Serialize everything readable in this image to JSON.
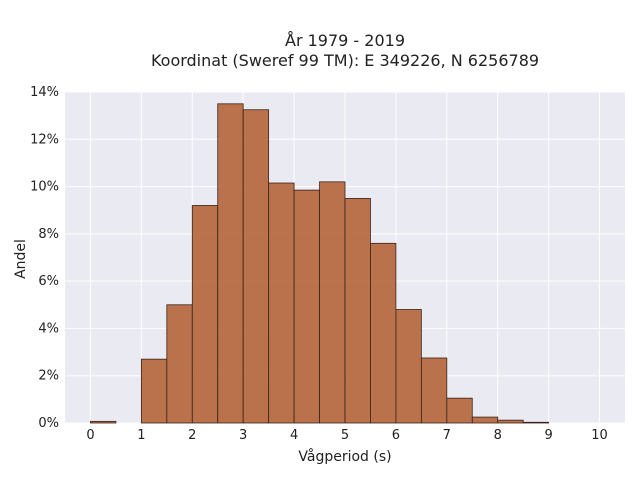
{
  "chart_data": {
    "type": "bar",
    "title_lines": [
      "År 1979 - 2019",
      "Koordinat (Sweref 99 TM): E 349226, N 6256789"
    ],
    "xlabel": "Vågperiod (s)",
    "ylabel": "Andel",
    "xlim": [
      -0.5,
      10.5
    ],
    "ylim": [
      0,
      14
    ],
    "x_ticks": [
      0,
      1,
      2,
      3,
      4,
      5,
      6,
      7,
      8,
      9,
      10
    ],
    "y_ticks": [
      0,
      2,
      4,
      6,
      8,
      10,
      12,
      14
    ],
    "y_tick_format": "percent",
    "bin_width": 0.5,
    "grid": true,
    "bar_color": "#b5653a",
    "bar_edge_color": "#3a2418",
    "plot_background": "#eaeaf2",
    "bins": [
      {
        "x0": 0.0,
        "value": 0.07
      },
      {
        "x0": 0.5,
        "value": 0.0
      },
      {
        "x0": 1.0,
        "value": 2.7
      },
      {
        "x0": 1.5,
        "value": 5.0
      },
      {
        "x0": 2.0,
        "value": 9.2
      },
      {
        "x0": 2.5,
        "value": 13.5
      },
      {
        "x0": 3.0,
        "value": 13.25
      },
      {
        "x0": 3.5,
        "value": 10.15
      },
      {
        "x0": 4.0,
        "value": 9.85
      },
      {
        "x0": 4.5,
        "value": 10.2
      },
      {
        "x0": 5.0,
        "value": 9.5
      },
      {
        "x0": 5.5,
        "value": 7.6
      },
      {
        "x0": 6.0,
        "value": 4.8
      },
      {
        "x0": 6.5,
        "value": 2.75
      },
      {
        "x0": 7.0,
        "value": 1.05
      },
      {
        "x0": 7.5,
        "value": 0.25
      },
      {
        "x0": 8.0,
        "value": 0.12
      },
      {
        "x0": 8.5,
        "value": 0.03
      }
    ]
  }
}
